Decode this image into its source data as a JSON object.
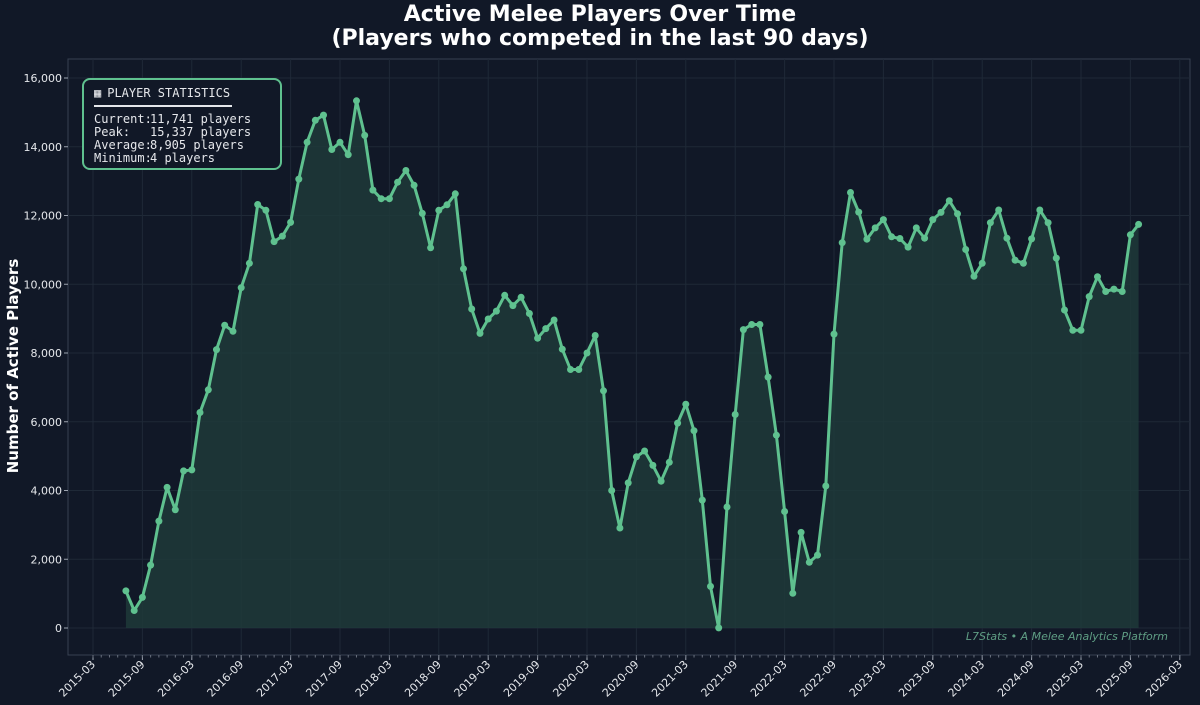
{
  "title_line1": "Active Melee Players Over Time",
  "title_line2": "(Players who competed in the last 90 days)",
  "stats": {
    "heading": "PLAYER STATISTICS",
    "icon": "chart-icon",
    "rows": [
      {
        "label": "Current:",
        "value": "11,741 players"
      },
      {
        "label": "Peak:",
        "value": "15,337 players"
      },
      {
        "label": "Average:",
        "value": "8,905 players"
      },
      {
        "label": "Minimum:",
        "value": "4 players"
      }
    ]
  },
  "watermark": "L7Stats • A Melee Analytics Platform",
  "colors": {
    "background": "#111827",
    "line": "#5fc18f",
    "fill": "#1e3a3a",
    "text": "#e5e7eb",
    "grid": "#1f2937"
  },
  "chart_data": {
    "type": "area",
    "title": "Active Melee Players Over Time\n(Players who competed in the last 90 days)",
    "xlabel": "",
    "ylabel": "Number of Active Players",
    "ylim": [
      0,
      16000
    ],
    "y_ticks": [
      "0",
      "2,000",
      "4,000",
      "6,000",
      "8,000",
      "10,000",
      "12,000",
      "14,000",
      "16,000"
    ],
    "x_ticks": [
      "2015-03",
      "2015-09",
      "2016-03",
      "2016-09",
      "2017-03",
      "2017-09",
      "2018-03",
      "2018-09",
      "2019-03",
      "2019-09",
      "2020-03",
      "2020-09",
      "2021-03",
      "2021-09",
      "2022-03",
      "2022-09",
      "2023-03",
      "2023-09",
      "2024-03",
      "2024-09",
      "2025-03",
      "2025-09",
      "2026-03"
    ],
    "grid": true,
    "series": [
      {
        "values": [
          [
            "2015-07",
            1080
          ],
          [
            "2015-08",
            510
          ],
          [
            "2015-09",
            890
          ],
          [
            "2015-10",
            1830
          ],
          [
            "2015-11",
            3110
          ],
          [
            "2015-12",
            4090
          ],
          [
            "2016-01",
            3440
          ],
          [
            "2016-02",
            4570
          ],
          [
            "2016-03",
            4600
          ],
          [
            "2016-04",
            6270
          ],
          [
            "2016-05",
            6930
          ],
          [
            "2016-06",
            8100
          ],
          [
            "2016-07",
            8810
          ],
          [
            "2016-08",
            8630
          ],
          [
            "2016-09",
            9900
          ],
          [
            "2016-10",
            10610
          ],
          [
            "2016-11",
            12320
          ],
          [
            "2016-12",
            12150
          ],
          [
            "2017-01",
            11240
          ],
          [
            "2017-02",
            11400
          ],
          [
            "2017-03",
            11800
          ],
          [
            "2017-04",
            13060
          ],
          [
            "2017-05",
            14130
          ],
          [
            "2017-06",
            14770
          ],
          [
            "2017-07",
            14920
          ],
          [
            "2017-08",
            13920
          ],
          [
            "2017-09",
            14130
          ],
          [
            "2017-10",
            13770
          ],
          [
            "2017-11",
            15337
          ],
          [
            "2017-12",
            14330
          ],
          [
            "2018-01",
            12740
          ],
          [
            "2018-02",
            12490
          ],
          [
            "2018-03",
            12490
          ],
          [
            "2018-04",
            12970
          ],
          [
            "2018-05",
            13310
          ],
          [
            "2018-06",
            12880
          ],
          [
            "2018-07",
            12060
          ],
          [
            "2018-08",
            11060
          ],
          [
            "2018-09",
            12150
          ],
          [
            "2018-10",
            12310
          ],
          [
            "2018-11",
            12630
          ],
          [
            "2018-12",
            10450
          ],
          [
            "2019-01",
            9280
          ],
          [
            "2019-02",
            8570
          ],
          [
            "2019-03",
            8990
          ],
          [
            "2019-04",
            9220
          ],
          [
            "2019-05",
            9680
          ],
          [
            "2019-06",
            9380
          ],
          [
            "2019-07",
            9620
          ],
          [
            "2019-08",
            9150
          ],
          [
            "2019-09",
            8430
          ],
          [
            "2019-10",
            8710
          ],
          [
            "2019-11",
            8960
          ],
          [
            "2019-12",
            8110
          ],
          [
            "2020-01",
            7520
          ],
          [
            "2020-02",
            7520
          ],
          [
            "2020-03",
            8000
          ],
          [
            "2020-04",
            8510
          ],
          [
            "2020-05",
            6900
          ],
          [
            "2020-06",
            4000
          ],
          [
            "2020-07",
            2910
          ],
          [
            "2020-08",
            4220
          ],
          [
            "2020-09",
            4980
          ],
          [
            "2020-10",
            5150
          ],
          [
            "2020-11",
            4730
          ],
          [
            "2020-12",
            4270
          ],
          [
            "2021-01",
            4820
          ],
          [
            "2021-02",
            5960
          ],
          [
            "2021-03",
            6510
          ],
          [
            "2021-04",
            5740
          ],
          [
            "2021-05",
            3720
          ],
          [
            "2021-06",
            1210
          ],
          [
            "2021-07",
            4
          ],
          [
            "2021-08",
            3520
          ],
          [
            "2021-09",
            6210
          ],
          [
            "2021-10",
            8680
          ],
          [
            "2021-11",
            8830
          ],
          [
            "2021-12",
            8830
          ],
          [
            "2022-01",
            7300
          ],
          [
            "2022-02",
            5610
          ],
          [
            "2022-03",
            3390
          ],
          [
            "2022-04",
            1010
          ],
          [
            "2022-05",
            2780
          ],
          [
            "2022-06",
            1910
          ],
          [
            "2022-07",
            2120
          ],
          [
            "2022-08",
            4130
          ],
          [
            "2022-09",
            8550
          ],
          [
            "2022-10",
            11210
          ],
          [
            "2022-11",
            12670
          ],
          [
            "2022-12",
            12100
          ],
          [
            "2023-01",
            11310
          ],
          [
            "2023-02",
            11640
          ],
          [
            "2023-03",
            11880
          ],
          [
            "2023-04",
            11380
          ],
          [
            "2023-05",
            11330
          ],
          [
            "2023-06",
            11080
          ],
          [
            "2023-07",
            11640
          ],
          [
            "2023-08",
            11340
          ],
          [
            "2023-09",
            11880
          ],
          [
            "2023-10",
            12090
          ],
          [
            "2023-11",
            12430
          ],
          [
            "2023-12",
            12050
          ],
          [
            "2024-01",
            11010
          ],
          [
            "2024-02",
            10230
          ],
          [
            "2024-03",
            10610
          ],
          [
            "2024-04",
            11790
          ],
          [
            "2024-05",
            12160
          ],
          [
            "2024-06",
            11340
          ],
          [
            "2024-07",
            10700
          ],
          [
            "2024-08",
            10610
          ],
          [
            "2024-09",
            11320
          ],
          [
            "2024-10",
            12160
          ],
          [
            "2024-11",
            11790
          ],
          [
            "2024-12",
            10760
          ],
          [
            "2025-01",
            9250
          ],
          [
            "2025-02",
            8660
          ],
          [
            "2025-03",
            8660
          ],
          [
            "2025-04",
            9640
          ],
          [
            "2025-05",
            10220
          ],
          [
            "2025-06",
            9790
          ],
          [
            "2025-07",
            9860
          ],
          [
            "2025-08",
            9790
          ],
          [
            "2025-09",
            11440
          ],
          [
            "2025-10",
            11741
          ]
        ]
      }
    ]
  }
}
